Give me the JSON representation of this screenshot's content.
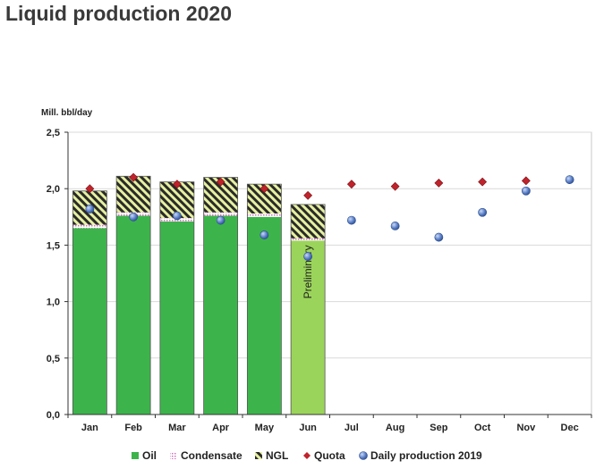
{
  "title": "Liquid production 2020",
  "chart_data": {
    "type": "bar",
    "title": "Liquid production 2020",
    "ylabel": "Mill. bbl/day",
    "xlabel": "",
    "ylim": [
      0,
      2.5
    ],
    "y_ticks": [
      "0,0",
      "0,5",
      "1,0",
      "1,5",
      "2,0",
      "2,5"
    ],
    "y_tick_values": [
      0,
      0.5,
      1.0,
      1.5,
      2.0,
      2.5
    ],
    "categories": [
      "Jan",
      "Feb",
      "Mar",
      "Apr",
      "May",
      "Jun",
      "Jul",
      "Aug",
      "Sep",
      "Oct",
      "Nov",
      "Dec"
    ],
    "stacked": true,
    "series": [
      {
        "name": "Oil",
        "kind": "bar",
        "color": "#3cb44b",
        "values": [
          1.65,
          1.76,
          1.71,
          1.76,
          1.75,
          1.54,
          null,
          null,
          null,
          null,
          null,
          null
        ]
      },
      {
        "name": "Condensate",
        "kind": "bar",
        "color": "#e8b3d8",
        "values": [
          0.03,
          0.03,
          0.03,
          0.03,
          0.03,
          0.02,
          null,
          null,
          null,
          null,
          null,
          null
        ]
      },
      {
        "name": "NGL",
        "kind": "bar",
        "color": "#2a2a2a",
        "values": [
          0.3,
          0.32,
          0.32,
          0.31,
          0.26,
          0.3,
          null,
          null,
          null,
          null,
          null,
          null
        ]
      },
      {
        "name": "Quota",
        "kind": "scatter",
        "marker": "diamond",
        "color": "#c0232b",
        "values": [
          2.0,
          2.1,
          2.04,
          2.06,
          2.0,
          1.94,
          2.04,
          2.02,
          2.05,
          2.06,
          2.07,
          2.08
        ]
      },
      {
        "name": "Daily production 2019",
        "kind": "scatter",
        "marker": "circle",
        "color": "#5b7fc7",
        "values": [
          1.82,
          1.75,
          1.76,
          1.72,
          1.59,
          1.4,
          1.72,
          1.67,
          1.57,
          1.79,
          1.98,
          2.08
        ]
      }
    ],
    "preliminary_month": "Jun",
    "preliminary_color": "#9bd45a",
    "annotation": "Preliminary",
    "grid": true,
    "legend_position": "bottom"
  }
}
